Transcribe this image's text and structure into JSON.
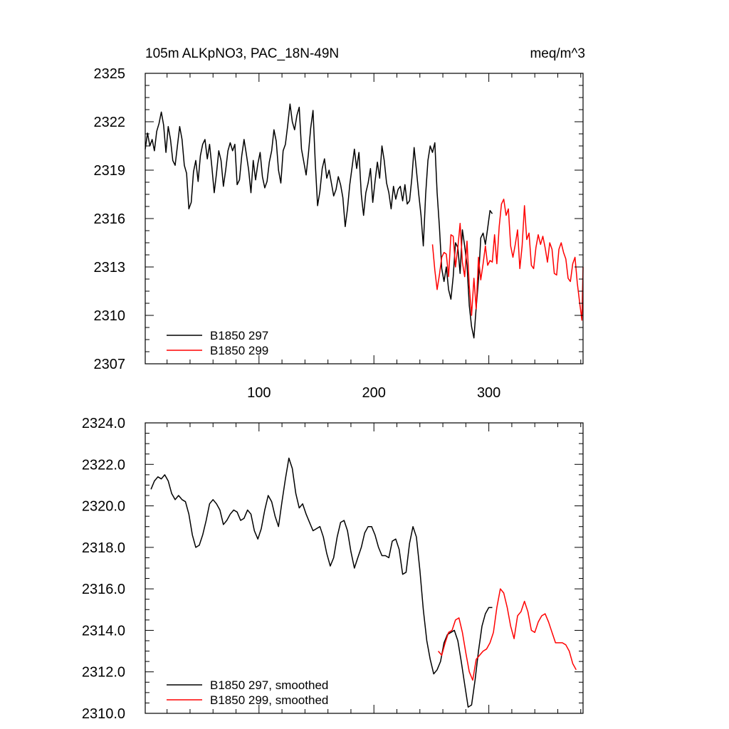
{
  "chart_data": [
    {
      "type": "line",
      "title": "105m ALKpNO3, PAC_18N-49N",
      "units": "meq/m^3",
      "xlabel": "",
      "ylabel": "",
      "xlim": [
        1,
        382
      ],
      "ylim": [
        2307,
        2325
      ],
      "x_ticks": [
        100,
        200,
        300
      ],
      "x_tick_labels": [
        "100",
        "200",
        "300"
      ],
      "y_ticks": [
        2307,
        2310,
        2313,
        2316,
        2319,
        2322,
        2325
      ],
      "y_tick_labels": [
        "2307",
        "2310",
        "2313",
        "2316",
        "2319",
        "2322",
        "2325"
      ],
      "legend_position": "bottom-left",
      "series": [
        {
          "name": "B1850 297",
          "color": "#000000",
          "x": [
            1,
            3,
            5,
            7,
            9,
            11,
            13,
            15,
            17,
            19,
            21,
            23,
            25,
            27,
            29,
            31,
            33,
            35,
            37,
            39,
            41,
            43,
            45,
            47,
            49,
            51,
            53,
            55,
            57,
            59,
            61,
            63,
            65,
            67,
            69,
            71,
            73,
            75,
            77,
            79,
            81,
            83,
            85,
            87,
            89,
            91,
            93,
            95,
            97,
            99,
            101,
            103,
            105,
            107,
            109,
            111,
            113,
            115,
            117,
            119,
            121,
            123,
            125,
            127,
            129,
            131,
            133,
            135,
            137,
            139,
            141,
            143,
            145,
            147,
            149,
            151,
            153,
            155,
            157,
            159,
            161,
            163,
            165,
            167,
            169,
            171,
            173,
            175,
            177,
            179,
            181,
            183,
            185,
            187,
            189,
            191,
            193,
            195,
            197,
            199,
            201,
            203,
            205,
            207,
            209,
            211,
            213,
            215,
            217,
            219,
            221,
            223,
            225,
            227,
            229,
            231,
            233,
            235,
            237,
            239,
            241,
            243,
            245,
            247,
            249,
            251,
            253,
            255,
            257,
            259,
            261,
            263,
            265,
            267,
            269,
            271,
            273,
            275,
            277,
            279,
            281,
            283,
            285,
            287,
            289,
            291,
            293,
            295,
            297,
            299,
            301,
            303
          ],
          "y": [
            2320.3,
            2321.3,
            2320.5,
            2320.9,
            2320.2,
            2321.4,
            2321.9,
            2322.6,
            2321.8,
            2320.1,
            2321.7,
            2320.9,
            2319.6,
            2319.3,
            2320.5,
            2321.7,
            2320.9,
            2319.3,
            2318.8,
            2316.6,
            2317.0,
            2318.9,
            2319.6,
            2318.3,
            2319.9,
            2320.6,
            2320.9,
            2319.7,
            2320.6,
            2319.2,
            2317.6,
            2318.8,
            2320.2,
            2319.6,
            2318.0,
            2319.0,
            2320.2,
            2320.7,
            2320.2,
            2320.6,
            2318.1,
            2318.4,
            2319.9,
            2320.9,
            2320.0,
            2319.0,
            2317.6,
            2319.6,
            2318.4,
            2319.4,
            2320.1,
            2318.6,
            2317.9,
            2318.3,
            2319.5,
            2320.2,
            2321.5,
            2320.8,
            2319.0,
            2318.2,
            2320.2,
            2320.6,
            2321.8,
            2323.1,
            2322.0,
            2321.5,
            2322.4,
            2322.9,
            2320.3,
            2319.5,
            2318.7,
            2320.0,
            2321.6,
            2322.7,
            2319.4,
            2316.8,
            2317.7,
            2319.1,
            2319.7,
            2318.5,
            2319.0,
            2318.2,
            2317.4,
            2317.8,
            2318.6,
            2318.1,
            2317.3,
            2315.5,
            2316.6,
            2318.1,
            2319.2,
            2320.3,
            2319.1,
            2320.1,
            2317.5,
            2316.2,
            2317.6,
            2318.2,
            2319.1,
            2317.0,
            2318.3,
            2319.5,
            2318.5,
            2320.5,
            2319.6,
            2318.2,
            2317.6,
            2316.6,
            2318.0,
            2317.2,
            2317.8,
            2318.0,
            2317.1,
            2318.1,
            2316.9,
            2317.1,
            2318.5,
            2320.4,
            2319.0,
            2317.5,
            2316.2,
            2314.3,
            2317.5,
            2319.6,
            2320.5,
            2320.1,
            2320.7,
            2317.6,
            2315.5,
            2312.9,
            2312.1,
            2313.0,
            2311.6,
            2311.0,
            2312.4,
            2314.5,
            2314.2,
            2312.6,
            2315.3,
            2314.3,
            2313.1,
            2310.6,
            2309.3,
            2308.6,
            2310.5,
            2312.2,
            2314.8,
            2315.1,
            2314.4,
            2315.4,
            2316.5,
            2316.3
          ]
        },
        {
          "name": "B1850 299",
          "color": "#ff0000",
          "x": [
            251,
            253,
            255,
            257,
            259,
            261,
            263,
            265,
            267,
            269,
            271,
            273,
            275,
            277,
            279,
            281,
            283,
            285,
            287,
            289,
            291,
            293,
            295,
            297,
            299,
            301,
            303,
            305,
            307,
            309,
            311,
            313,
            315,
            317,
            319,
            321,
            323,
            325,
            327,
            329,
            331,
            333,
            335,
            337,
            339,
            341,
            343,
            345,
            347,
            349,
            351,
            353,
            355,
            357,
            359,
            361,
            363,
            365,
            367,
            369,
            371,
            373,
            375,
            377,
            379,
            381,
            382
          ],
          "y": [
            2314.4,
            2312.8,
            2311.6,
            2312.5,
            2313.6,
            2313.9,
            2313.8,
            2312.4,
            2315.0,
            2314.9,
            2313.0,
            2314.2,
            2315.7,
            2313.3,
            2312.4,
            2314.6,
            2311.8,
            2310.0,
            2312.3,
            2310.4,
            2313.6,
            2312.2,
            2313.2,
            2314.3,
            2313.1,
            2313.4,
            2313.3,
            2315.0,
            2313.2,
            2315.5,
            2316.9,
            2317.2,
            2316.2,
            2316.6,
            2314.3,
            2313.6,
            2314.4,
            2315.3,
            2312.9,
            2314.3,
            2316.8,
            2314.7,
            2315.1,
            2313.1,
            2312.9,
            2314.2,
            2315.0,
            2314.4,
            2314.9,
            2314.2,
            2313.3,
            2314.5,
            2314.1,
            2312.6,
            2312.5,
            2314.1,
            2314.5,
            2313.9,
            2313.5,
            2312.3,
            2312.1,
            2313.2,
            2313.6,
            2312.0,
            2310.8,
            2309.7,
            2313.0
          ]
        }
      ]
    },
    {
      "type": "line",
      "title": "",
      "xlabel": "",
      "ylabel": "",
      "xlim": [
        1,
        382
      ],
      "ylim": [
        2310.0,
        2324.0
      ],
      "x_ticks": [
        100,
        200,
        300
      ],
      "x_tick_labels": [],
      "y_ticks": [
        2310.0,
        2312.0,
        2314.0,
        2316.0,
        2318.0,
        2320.0,
        2322.0,
        2324.0
      ],
      "y_tick_labels": [
        "2310.0",
        "2312.0",
        "2314.0",
        "2316.0",
        "2318.0",
        "2320.0",
        "2322.0",
        "2324.0"
      ],
      "legend_position": "bottom-left",
      "series": [
        {
          "name": "B1850 297, smoothed",
          "color": "#000000",
          "x": [
            6,
            9,
            12,
            15,
            18,
            21,
            24,
            27,
            30,
            33,
            36,
            39,
            42,
            45,
            48,
            51,
            54,
            57,
            60,
            63,
            66,
            69,
            72,
            75,
            78,
            81,
            84,
            87,
            90,
            93,
            96,
            99,
            102,
            105,
            108,
            111,
            114,
            117,
            120,
            123,
            126,
            129,
            132,
            135,
            138,
            141,
            144,
            147,
            150,
            153,
            156,
            159,
            162,
            165,
            168,
            171,
            174,
            177,
            180,
            183,
            186,
            189,
            192,
            195,
            198,
            201,
            204,
            207,
            210,
            213,
            216,
            219,
            222,
            225,
            228,
            231,
            234,
            237,
            240,
            243,
            246,
            249,
            252,
            255,
            258,
            261,
            264,
            267,
            270,
            273,
            276,
            279,
            282,
            285,
            288,
            291,
            294,
            297,
            300,
            303
          ],
          "y": [
            2320.8,
            2321.2,
            2321.4,
            2321.3,
            2321.5,
            2321.2,
            2320.6,
            2320.3,
            2320.5,
            2320.3,
            2320.2,
            2319.6,
            2318.6,
            2318.0,
            2318.1,
            2318.6,
            2319.3,
            2320.1,
            2320.3,
            2320.1,
            2319.8,
            2319.1,
            2319.3,
            2319.6,
            2319.8,
            2319.7,
            2319.3,
            2319.4,
            2319.8,
            2319.6,
            2318.8,
            2318.4,
            2318.9,
            2319.8,
            2320.5,
            2320.2,
            2319.5,
            2319.0,
            2320.2,
            2321.3,
            2322.3,
            2321.8,
            2320.6,
            2319.9,
            2320.1,
            2319.6,
            2319.2,
            2318.8,
            2318.9,
            2319.0,
            2318.5,
            2317.7,
            2317.1,
            2317.5,
            2318.5,
            2319.2,
            2319.3,
            2318.8,
            2317.8,
            2317.0,
            2317.5,
            2318.0,
            2318.7,
            2319.0,
            2319.0,
            2318.6,
            2318.0,
            2317.6,
            2317.6,
            2317.5,
            2318.3,
            2318.4,
            2317.9,
            2316.7,
            2316.8,
            2318.2,
            2319.0,
            2318.5,
            2316.9,
            2315.0,
            2313.5,
            2312.6,
            2311.9,
            2312.1,
            2312.5,
            2313.4,
            2313.8,
            2313.9,
            2314.0,
            2313.5,
            2312.5,
            2311.4,
            2310.3,
            2310.4,
            2311.6,
            2313.0,
            2314.2,
            2314.8,
            2315.1,
            2315.1
          ]
        },
        {
          "name": "B1850 299, smoothed",
          "color": "#ff0000",
          "x": [
            256,
            259,
            262,
            265,
            268,
            271,
            274,
            277,
            280,
            283,
            286,
            289,
            292,
            295,
            298,
            301,
            304,
            307,
            310,
            313,
            316,
            319,
            322,
            325,
            328,
            331,
            334,
            337,
            340,
            343,
            346,
            349,
            352,
            355,
            358,
            361,
            364,
            367,
            370,
            373,
            376
          ],
          "y": [
            2313.0,
            2312.8,
            2313.4,
            2313.9,
            2314.0,
            2314.5,
            2314.6,
            2313.9,
            2312.9,
            2312.0,
            2311.6,
            2312.6,
            2312.8,
            2313.0,
            2313.1,
            2313.4,
            2313.9,
            2315.1,
            2316.0,
            2315.8,
            2315.1,
            2314.2,
            2313.6,
            2314.7,
            2314.9,
            2315.4,
            2314.9,
            2314.0,
            2313.9,
            2314.4,
            2314.7,
            2314.8,
            2314.4,
            2313.9,
            2313.4,
            2313.4,
            2313.4,
            2313.3,
            2313.0,
            2312.4,
            2312.1
          ]
        }
      ]
    }
  ]
}
